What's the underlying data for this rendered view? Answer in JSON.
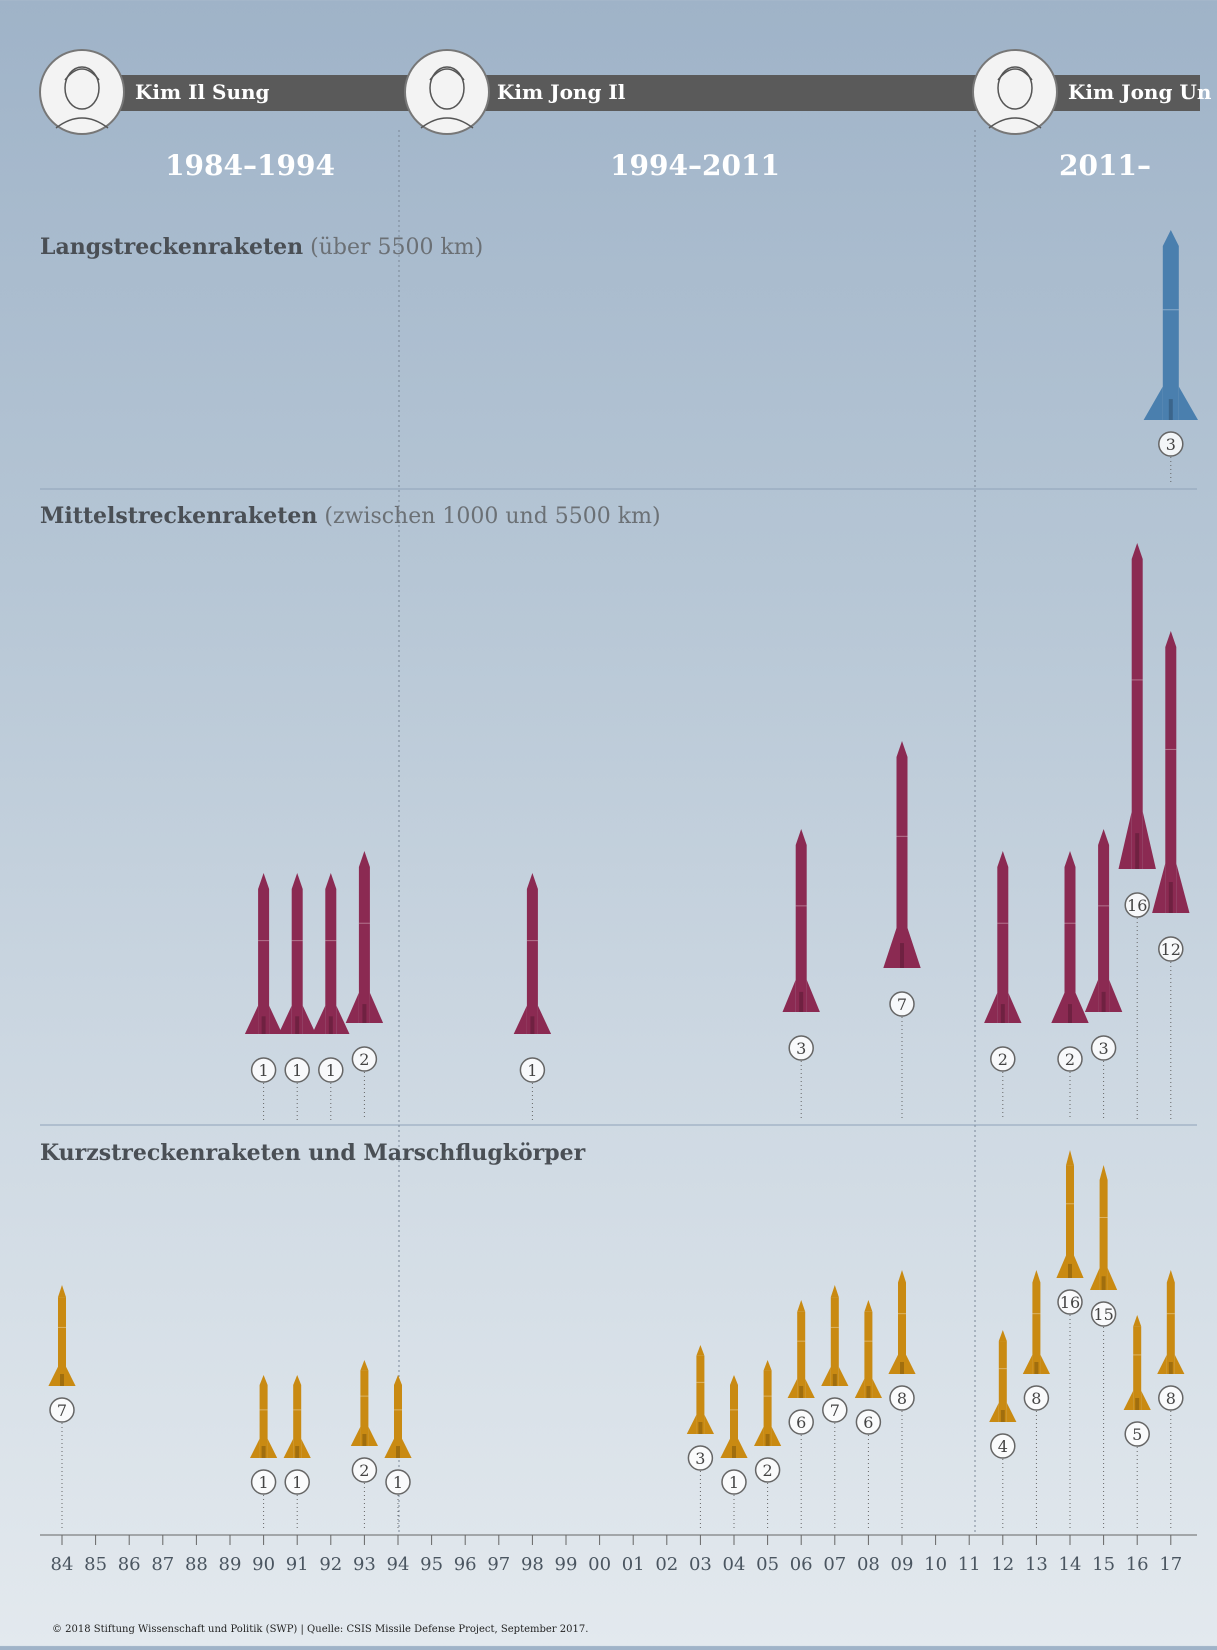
{
  "leaders": [
    {
      "name": "Kim Il Sung",
      "period": "1984–1994"
    },
    {
      "name": "Kim Jong Il",
      "period": "1994–2011"
    },
    {
      "name": "Kim Jong Un",
      "period": "2011–"
    }
  ],
  "sections": {
    "long": {
      "title": "Langstreckenraketen",
      "subtitle": "(über 5500 km)"
    },
    "medium": {
      "title": "Mittelstreckenraketen",
      "subtitle": "(zwischen 1000 und 5500 km)"
    },
    "short": {
      "title": "Kurzstreckenraketen und Marschflugkörper",
      "subtitle": ""
    }
  },
  "footer": "© 2018 Stiftung Wissenschaft und Politik (SWP) | Quelle: CSIS Missile Defense Project, September 2017.",
  "colors": {
    "long": "#4a7fae",
    "medium": "#8b2a52",
    "short": "#c98a12"
  },
  "chart_data": {
    "type": "bar",
    "x_ticks": [
      "84",
      "85",
      "86",
      "87",
      "88",
      "89",
      "90",
      "91",
      "92",
      "93",
      "94",
      "95",
      "96",
      "97",
      "98",
      "99",
      "00",
      "01",
      "02",
      "03",
      "04",
      "05",
      "06",
      "07",
      "08",
      "09",
      "10",
      "11",
      "12",
      "13",
      "14",
      "15",
      "16",
      "17"
    ],
    "series": [
      {
        "name": "Langstreckenraketen",
        "points": [
          {
            "x": "17",
            "value": 3
          }
        ]
      },
      {
        "name": "Mittelstreckenraketen",
        "points": [
          {
            "x": "90",
            "value": 1
          },
          {
            "x": "91",
            "value": 1
          },
          {
            "x": "92",
            "value": 1
          },
          {
            "x": "93",
            "value": 2
          },
          {
            "x": "98",
            "value": 1
          },
          {
            "x": "06",
            "value": 3
          },
          {
            "x": "09",
            "value": 7
          },
          {
            "x": "12",
            "value": 2
          },
          {
            "x": "14",
            "value": 2
          },
          {
            "x": "15",
            "value": 3
          },
          {
            "x": "16",
            "value": 16
          },
          {
            "x": "17",
            "value": 12
          }
        ]
      },
      {
        "name": "Kurzstreckenraketen und Marschflugkörper",
        "points": [
          {
            "x": "84",
            "value": 7
          },
          {
            "x": "90",
            "value": 1
          },
          {
            "x": "91",
            "value": 1
          },
          {
            "x": "93",
            "value": 2
          },
          {
            "x": "94",
            "value": 1
          },
          {
            "x": "03",
            "value": 3
          },
          {
            "x": "04",
            "value": 1
          },
          {
            "x": "05",
            "value": 2
          },
          {
            "x": "06",
            "value": 6
          },
          {
            "x": "07",
            "value": 7
          },
          {
            "x": "08",
            "value": 6
          },
          {
            "x": "09",
            "value": 8
          },
          {
            "x": "12",
            "value": 4
          },
          {
            "x": "13",
            "value": 8
          },
          {
            "x": "14",
            "value": 16
          },
          {
            "x": "15",
            "value": 15
          },
          {
            "x": "16",
            "value": 5
          },
          {
            "x": "17",
            "value": 8
          }
        ]
      }
    ]
  }
}
